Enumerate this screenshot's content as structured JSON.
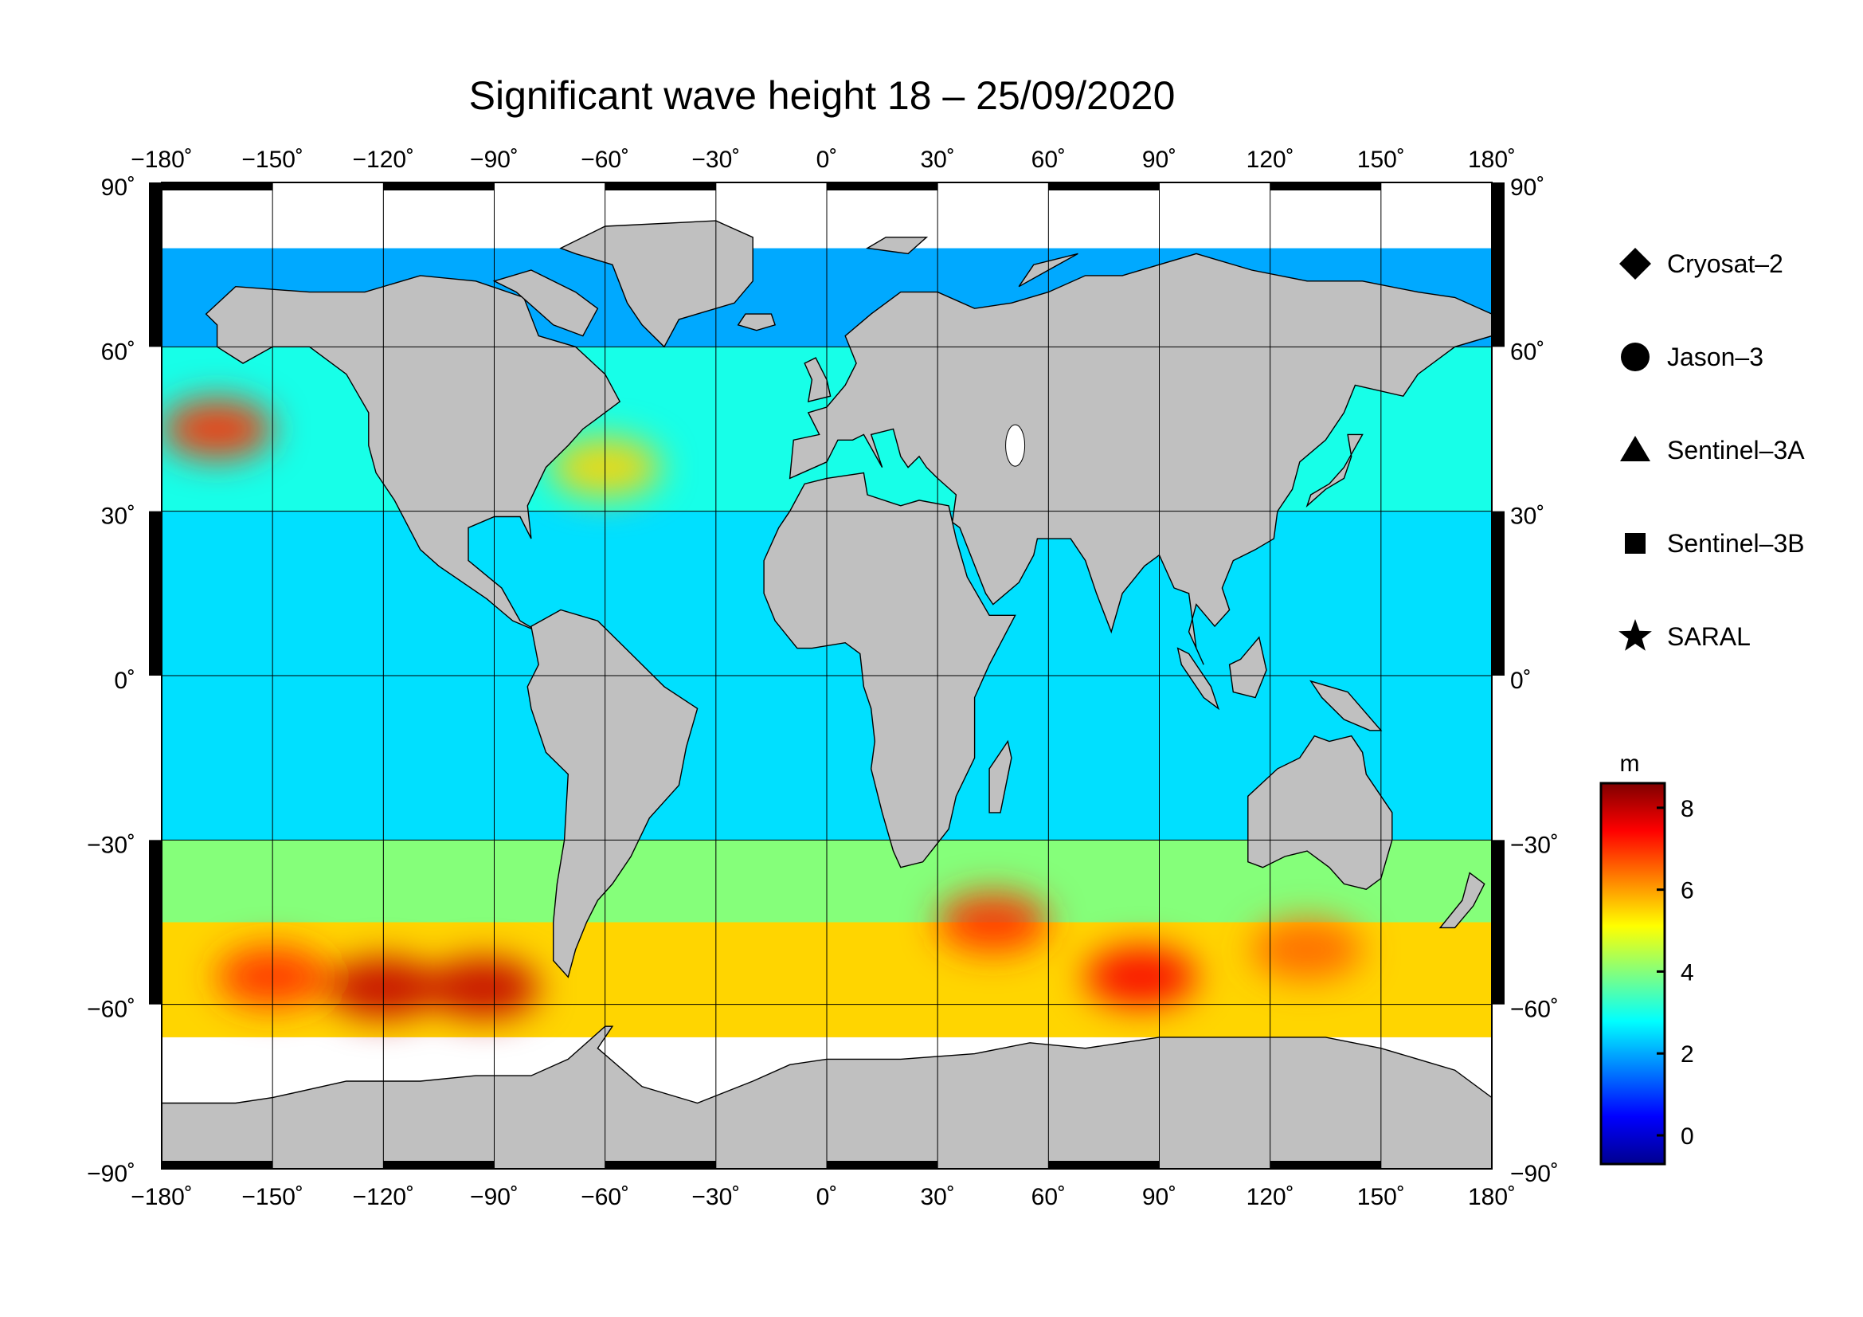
{
  "title": "Significant wave height 18 – 25/09/2020",
  "map": {
    "projection": "equirectangular",
    "lon_range": [
      -180,
      180
    ],
    "lat_range": [
      -90,
      90
    ],
    "grid_lon": [
      -150,
      -120,
      -90,
      -60,
      -30,
      0,
      30,
      60,
      90,
      120,
      150
    ],
    "grid_lat": [
      -60,
      -30,
      0,
      30,
      60
    ],
    "land_color": "#c0c0c0",
    "ice_color": "#ffffff",
    "grid_color": "#000000"
  },
  "axes": {
    "lon_ticks": [
      {
        "value": -180,
        "label": "−180˚"
      },
      {
        "value": -150,
        "label": "−150˚"
      },
      {
        "value": -120,
        "label": "−120˚"
      },
      {
        "value": -90,
        "label": "−90˚"
      },
      {
        "value": -60,
        "label": "−60˚"
      },
      {
        "value": -30,
        "label": "−30˚"
      },
      {
        "value": 0,
        "label": "0˚"
      },
      {
        "value": 30,
        "label": "30˚"
      },
      {
        "value": 60,
        "label": "60˚"
      },
      {
        "value": 90,
        "label": "90˚"
      },
      {
        "value": 120,
        "label": "120˚"
      },
      {
        "value": 150,
        "label": "150˚"
      },
      {
        "value": 180,
        "label": "180˚"
      }
    ],
    "lat_ticks": [
      {
        "value": 90,
        "label": "90˚"
      },
      {
        "value": 60,
        "label": "60˚"
      },
      {
        "value": 30,
        "label": "30˚"
      },
      {
        "value": 0,
        "label": "0˚"
      },
      {
        "value": -30,
        "label": "−30˚"
      },
      {
        "value": -60,
        "label": "−60˚"
      },
      {
        "value": -90,
        "label": "−90˚"
      }
    ]
  },
  "legend": {
    "placement": "right",
    "items": [
      {
        "label": "Cryosat–2",
        "symbol": "diamond"
      },
      {
        "label": "Jason–3",
        "symbol": "circle"
      },
      {
        "label": "Sentinel–3A",
        "symbol": "triangle"
      },
      {
        "label": "Sentinel–3B",
        "symbol": "square"
      },
      {
        "label": "SARAL",
        "symbol": "star"
      }
    ]
  },
  "colorbar": {
    "unit": "m",
    "min": -0.7,
    "max": 8.6,
    "ticks": [
      {
        "value": 0,
        "label": "0"
      },
      {
        "value": 2,
        "label": "2"
      },
      {
        "value": 4,
        "label": "4"
      },
      {
        "value": 6,
        "label": "6"
      },
      {
        "value": 8,
        "label": "8"
      }
    ],
    "stops": [
      "#00008f",
      "#0000ff",
      "#0080ff",
      "#00ffff",
      "#80ff80",
      "#ffff00",
      "#ff8000",
      "#ff0000",
      "#800000"
    ]
  },
  "ocean_bands": [
    {
      "lat_min": 60,
      "lat_max": 78,
      "wave_height_m": 2.0
    },
    {
      "lat_min": 30,
      "lat_max": 60,
      "wave_height_m": 3.0
    },
    {
      "lat_min": -30,
      "lat_max": 30,
      "wave_height_m": 2.5
    },
    {
      "lat_min": -45,
      "lat_max": -30,
      "wave_height_m": 4.0
    },
    {
      "lat_min": -66,
      "lat_max": -45,
      "wave_height_m": 5.5
    }
  ],
  "storm_regions": [
    {
      "lon": -165,
      "lat": 45,
      "wave_height_m": 7
    },
    {
      "lon": -120,
      "lat": -57,
      "wave_height_m": 8
    },
    {
      "lon": -93,
      "lat": -57,
      "wave_height_m": 8
    },
    {
      "lon": -150,
      "lat": -55,
      "wave_height_m": 7
    },
    {
      "lon": 45,
      "lat": -45,
      "wave_height_m": 7
    },
    {
      "lon": 85,
      "lat": -55,
      "wave_height_m": 7.5
    },
    {
      "lon": 130,
      "lat": -50,
      "wave_height_m": 6.5
    },
    {
      "lon": -60,
      "lat": 38,
      "wave_height_m": 5.5
    }
  ]
}
